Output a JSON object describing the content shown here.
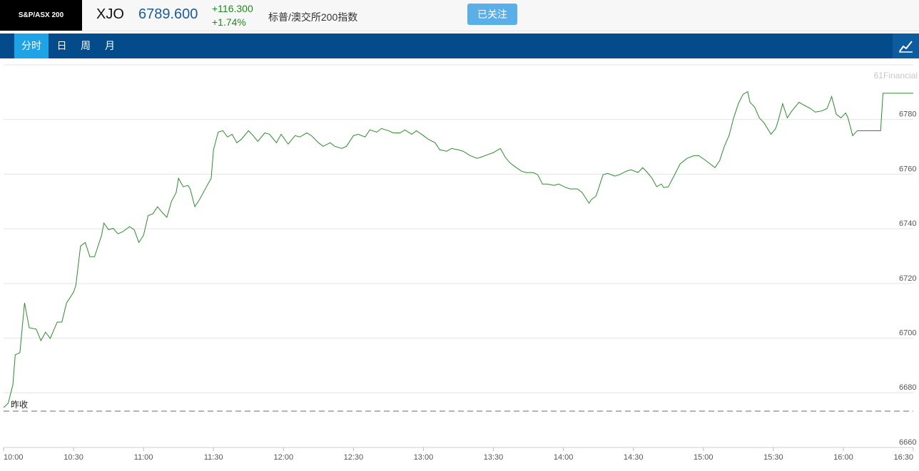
{
  "header": {
    "logo": "S&P/ASX 200",
    "symbol": "XJO",
    "price": "6789.600",
    "change": "+116.300",
    "change_pct": "+1.74%",
    "name": "标普/澳交所200指数",
    "follow_button": "已关注"
  },
  "tabs": [
    "分时",
    "日",
    "周",
    "月"
  ],
  "chart_data": {
    "type": "line",
    "watermark": "61Financial",
    "color": "#2e8b2e",
    "grid": true,
    "reference_line": {
      "value": 6673.3,
      "label": "昨收"
    },
    "xlim": [
      600,
      990
    ],
    "xticks": [
      {
        "value": 600,
        "label": "10:00"
      },
      {
        "value": 630,
        "label": "10:30"
      },
      {
        "value": 660,
        "label": "11:00"
      },
      {
        "value": 690,
        "label": "11:30"
      },
      {
        "value": 720,
        "label": "12:00"
      },
      {
        "value": 750,
        "label": "12:30"
      },
      {
        "value": 780,
        "label": "13:00"
      },
      {
        "value": 810,
        "label": "13:30"
      },
      {
        "value": 840,
        "label": "14:00"
      },
      {
        "value": 870,
        "label": "14:30"
      },
      {
        "value": 900,
        "label": "15:00"
      },
      {
        "value": 930,
        "label": "15:30"
      },
      {
        "value": 960,
        "label": "16:00"
      },
      {
        "value": 990,
        "label": "16:30"
      }
    ],
    "ylim": [
      6660,
      6800
    ],
    "yticks": [
      6660,
      6680,
      6700,
      6720,
      6740,
      6760,
      6780
    ],
    "x": [
      600,
      602,
      604,
      605,
      607,
      609,
      611,
      614,
      616,
      618,
      620,
      623,
      625,
      627,
      630,
      631,
      633,
      635,
      637,
      639,
      642,
      643,
      645,
      647,
      649,
      651,
      654,
      656,
      658,
      660,
      662,
      664,
      666,
      668,
      670,
      672,
      674,
      675,
      677,
      679,
      680,
      682,
      684,
      687,
      689,
      690,
      692,
      694,
      696,
      698,
      700,
      702,
      705,
      707,
      709,
      712,
      714,
      717,
      719,
      722,
      725,
      727,
      730,
      732,
      735,
      737,
      740,
      742,
      745,
      747,
      750,
      752,
      755,
      757,
      760,
      762,
      765,
      767,
      770,
      772,
      775,
      777,
      780,
      782,
      785,
      787,
      790,
      792,
      795,
      797,
      800,
      803,
      805,
      808,
      810,
      813,
      815,
      817,
      819,
      822,
      824,
      827,
      829,
      831,
      833,
      836,
      838,
      841,
      843,
      846,
      848,
      851,
      852,
      854,
      857,
      859,
      862,
      864,
      867,
      869,
      872,
      874,
      876,
      878,
      880,
      882,
      883,
      885,
      888,
      890,
      893,
      896,
      898,
      901,
      903,
      905,
      907,
      909,
      911,
      913,
      915,
      917,
      919,
      920,
      922,
      924,
      926,
      929,
      931,
      932,
      934,
      936,
      938,
      941,
      943,
      946,
      948,
      951,
      953,
      955,
      957,
      959,
      961,
      962,
      964,
      966,
      968,
      972,
      976,
      977,
      980,
      990
    ],
    "values": [
      6674.6,
      6676.2,
      6683.0,
      6693.9,
      6694.7,
      6712.9,
      6703.8,
      6703.3,
      6699.1,
      6702.2,
      6699.9,
      6705.9,
      6705.9,
      6712.9,
      6716.8,
      6719.4,
      6733.7,
      6735.0,
      6729.8,
      6729.8,
      6737.6,
      6742.1,
      6739.7,
      6740.2,
      6738.2,
      6738.9,
      6740.8,
      6739.7,
      6735.0,
      6737.6,
      6744.9,
      6745.5,
      6748.1,
      6746.0,
      6744.2,
      6750.1,
      6753.3,
      6758.5,
      6755.4,
      6755.9,
      6754.6,
      6748.1,
      6750.7,
      6755.4,
      6758.5,
      6768.9,
      6775.4,
      6775.9,
      6773.6,
      6774.6,
      6771.5,
      6772.8,
      6775.9,
      6774.1,
      6772.0,
      6775.1,
      6774.6,
      6771.5,
      6774.6,
      6771.0,
      6774.1,
      6773.6,
      6775.1,
      6774.1,
      6771.5,
      6770.2,
      6771.5,
      6770.2,
      6769.4,
      6770.2,
      6774.1,
      6774.6,
      6773.6,
      6776.2,
      6775.4,
      6776.7,
      6775.9,
      6775.1,
      6775.1,
      6776.2,
      6774.6,
      6775.9,
      6774.1,
      6772.8,
      6771.5,
      6768.9,
      6768.4,
      6769.4,
      6768.9,
      6768.4,
      6766.8,
      6765.8,
      6766.3,
      6767.3,
      6767.9,
      6769.4,
      6766.3,
      6764.2,
      6762.9,
      6761.1,
      6760.6,
      6760.6,
      6759.8,
      6756.4,
      6756.4,
      6755.9,
      6756.4,
      6755.1,
      6754.6,
      6754.6,
      6753.3,
      6749.4,
      6750.7,
      6752.0,
      6759.8,
      6760.3,
      6759.3,
      6759.8,
      6761.1,
      6761.6,
      6760.6,
      6762.4,
      6760.6,
      6758.5,
      6755.4,
      6756.4,
      6755.1,
      6755.4,
      6760.3,
      6763.7,
      6765.8,
      6766.8,
      6766.8,
      6765.0,
      6763.7,
      6762.4,
      6765.0,
      6770.2,
      6774.1,
      6780.6,
      6785.8,
      6789.2,
      6790.2,
      6786.3,
      6784.5,
      6780.6,
      6778.8,
      6774.6,
      6776.7,
      6779.3,
      6785.8,
      6780.6,
      6783.2,
      6786.3,
      6785.3,
      6784.0,
      6782.7,
      6783.2,
      6784.0,
      6788.4,
      6781.9,
      6780.6,
      6782.4,
      6780.6,
      6774.1,
      6775.9,
      6775.9,
      6775.9,
      6775.9,
      6789.6,
      6789.6,
      6789.6
    ]
  }
}
